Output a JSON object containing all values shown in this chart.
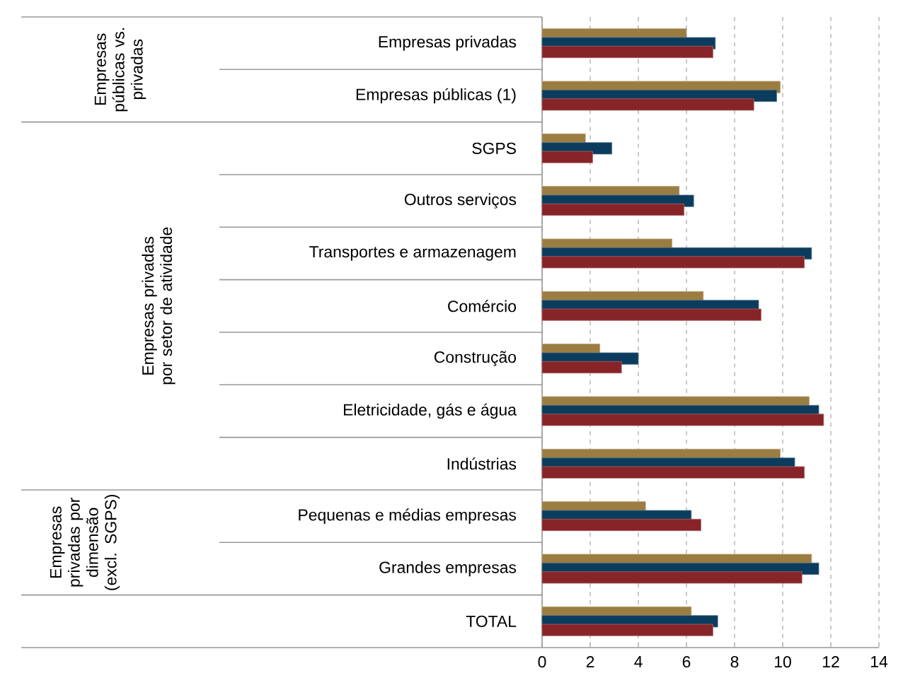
{
  "chart_data": {
    "type": "bar",
    "orientation": "horizontal",
    "categories": [
      "Empresas privadas",
      "Empresas públicas (1)",
      "SGPS",
      "Outros serviços",
      "Transportes e armazenagem",
      "Comércio",
      "Construção",
      "Eletricidade, gás e água",
      "Indústrias",
      "Pequenas e médias empresas",
      "Grandes empresas",
      "TOTAL"
    ],
    "series": [
      {
        "color": "#9b7d42",
        "values": [
          6.0,
          9.9,
          1.8,
          5.7,
          5.4,
          6.7,
          2.4,
          11.1,
          9.9,
          4.3,
          11.2,
          6.2
        ]
      },
      {
        "color": "#0b3c5d",
        "values": [
          7.2,
          9.75,
          2.9,
          6.3,
          11.2,
          9.0,
          4.0,
          11.5,
          10.5,
          6.2,
          11.5,
          7.3
        ]
      },
      {
        "color": "#862428",
        "values": [
          7.1,
          8.8,
          2.1,
          5.9,
          10.9,
          9.1,
          3.3,
          11.7,
          10.9,
          6.6,
          10.8,
          7.1
        ]
      }
    ],
    "xlim": [
      0,
      14
    ],
    "xticks": [
      0,
      2,
      4,
      6,
      8,
      10,
      12,
      14
    ],
    "grid": "x",
    "annotations": [
      "Empresas públicas vs. privadas",
      "Empresas privadas por setor de atividade",
      "Empresas privadas por dimensão (excl. SGPS)"
    ]
  }
}
